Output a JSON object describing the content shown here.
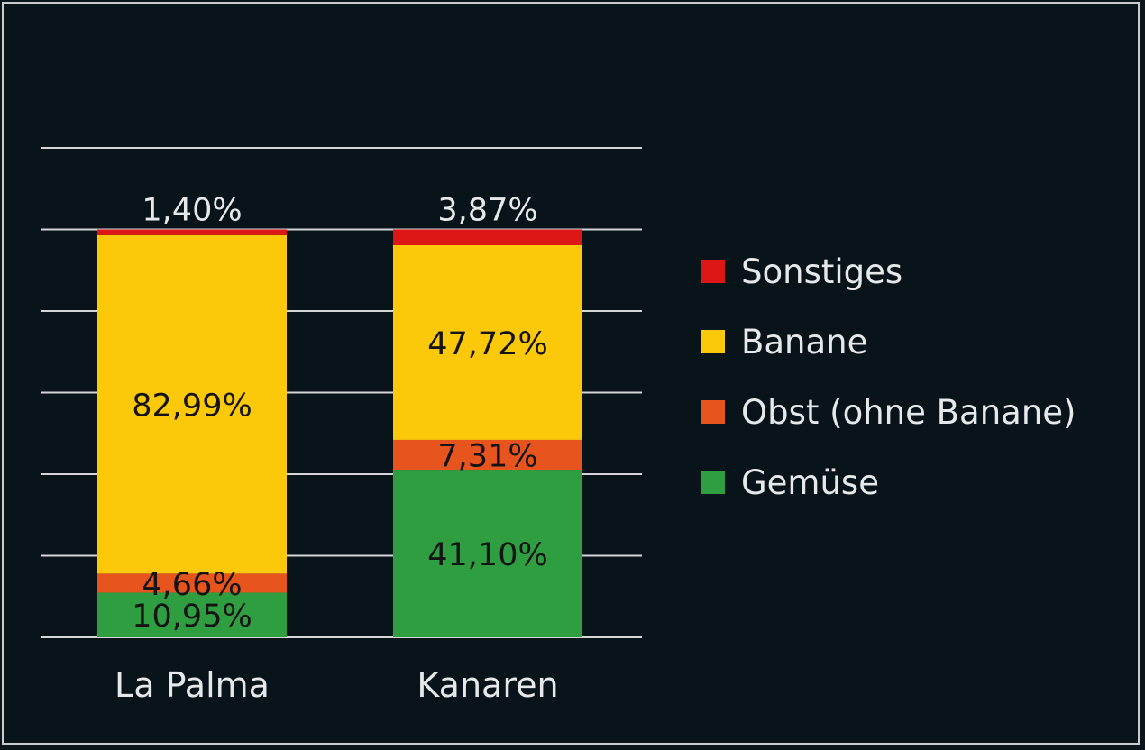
{
  "chart_data": {
    "type": "bar",
    "stacked": true,
    "categories": [
      "La Palma",
      "Kanaren"
    ],
    "series": [
      {
        "name": "Gemüse",
        "color": "#2e9e40",
        "values": [
          10.95,
          41.1
        ],
        "labels": [
          "10,95%",
          "41,10%"
        ]
      },
      {
        "name": "Obst (ohne Banane)",
        "color": "#e8541e",
        "values": [
          4.66,
          7.31
        ],
        "labels": [
          "4,66%",
          "7,31%"
        ]
      },
      {
        "name": "Banane",
        "color": "#fcc80a",
        "values": [
          82.99,
          47.72
        ],
        "labels": [
          "82,99%",
          "47,72%"
        ]
      },
      {
        "name": "Sonstiges",
        "color": "#dd1616",
        "values": [
          1.4,
          3.87
        ],
        "labels": [
          "1,40%",
          "3,87%"
        ]
      }
    ],
    "ylim": [
      0,
      120
    ],
    "grid": true,
    "legend": "right",
    "xlabel": "",
    "ylabel": "",
    "title": ""
  },
  "legend": {
    "items": [
      {
        "label": "Sonstiges",
        "color": "#dd1616"
      },
      {
        "label": "Banane",
        "color": "#fcc80a"
      },
      {
        "label": "Obst (ohne Banane)",
        "color": "#e8541e"
      },
      {
        "label": "Gemüse",
        "color": "#2e9e40"
      }
    ]
  },
  "colors": {
    "background": "#08131a",
    "gridline": "#d4d6d8",
    "text_light": "#e6e8ea",
    "text_dark": "#141414"
  }
}
